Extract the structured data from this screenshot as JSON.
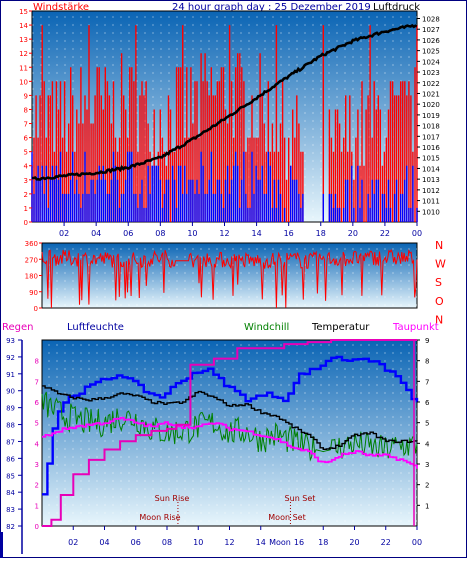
{
  "header": {
    "left_label": "Windstärke",
    "title": "24 hour graph day : 25 Dezember 2019",
    "right_label": "Luftdruck"
  },
  "direction_labels": [
    "N",
    "W",
    "S",
    "O",
    "N"
  ],
  "bottom_header": {
    "regen": "Regen",
    "luftfeuchte": "Luftfeuchte",
    "windchill": "Windchill",
    "temperatur": "Temperatur",
    "taupunkt": "Taupunkt"
  },
  "events": {
    "sun_rise": "Sun Rise",
    "sun_set": "Sun Set",
    "moon_rise": "Moon Rise",
    "moon_set": "Moon Set",
    "moon_tick": "Moon"
  },
  "colors": {
    "bg_gradient_top": "#0a64b4",
    "bg_gradient_bottom": "#e8f6fc",
    "wind_gust": "#ff0000",
    "wind_avg": "#0000ff",
    "pressure": "#000000",
    "direction": "#ff0000",
    "rain": "#e800b8",
    "humidity": "#0000ff",
    "windchill": "#008000",
    "temperature": "#000000",
    "dewpoint": "#ff00ff",
    "axis_left": "#ff0000",
    "axis_right": "#000000",
    "axis_blue": "#0000a0",
    "events": "#a00000"
  },
  "chart_data": [
    {
      "type": "bar",
      "panel": "wind_pressure",
      "x_ticks": [
        "02",
        "04",
        "06",
        "08",
        "10",
        "12",
        "14",
        "16",
        "18",
        "20",
        "22",
        "00"
      ],
      "y_left_ticks": [
        "0",
        "1",
        "2",
        "3",
        "4",
        "5",
        "6",
        "7",
        "8",
        "9",
        "10",
        "11",
        "12",
        "13",
        "14",
        "15"
      ],
      "y_right_ticks": [
        "1010",
        "1011",
        "1012",
        "1013",
        "1014",
        "1015",
        "1016",
        "1017",
        "1018",
        "1019",
        "1020",
        "1021",
        "1022",
        "1023",
        "1024",
        "1025",
        "1026",
        "1027",
        "1028"
      ],
      "ylim_left": [
        0,
        15
      ],
      "ylim_right": [
        1009,
        1028.7
      ],
      "series": [
        {
          "name": "Windstärke",
          "style": "gust",
          "x": [
            0,
            2,
            4,
            6,
            8,
            10,
            12,
            14,
            16,
            18,
            20,
            22,
            24
          ],
          "y": [
            7,
            7,
            8,
            8,
            7,
            8,
            9,
            8,
            6,
            4,
            6,
            7,
            7
          ]
        },
        {
          "style": "average",
          "x": [
            0,
            2,
            4,
            6,
            8,
            10,
            12,
            14,
            16,
            18,
            20,
            22,
            24
          ],
          "y": [
            3,
            3,
            3,
            3,
            2,
            3,
            3,
            3,
            2,
            1,
            2,
            2,
            2
          ]
        },
        {
          "name": "Luftdruck",
          "x": [
            0,
            2,
            4,
            6,
            8,
            10,
            12,
            14,
            16,
            18,
            20,
            22,
            24
          ],
          "y": [
            1013.0,
            1013.3,
            1013.6,
            1014.1,
            1015.0,
            1016.7,
            1018.6,
            1020.6,
            1022.6,
            1024.5,
            1025.9,
            1026.8,
            1027.4
          ]
        }
      ]
    },
    {
      "type": "line",
      "panel": "wind_direction",
      "y_ticks": [
        "0",
        "90",
        "180",
        "270",
        "360"
      ],
      "ylim": [
        0,
        360
      ],
      "series": [
        {
          "x": [
            0,
            2,
            4,
            6,
            8,
            8.5,
            9.4,
            10,
            12,
            14,
            16,
            17,
            18,
            20,
            22,
            24
          ],
          "y": [
            280,
            275,
            270,
            265,
            280,
            260,
            260,
            270,
            265,
            260,
            270,
            260,
            270,
            275,
            280,
            275
          ]
        }
      ]
    },
    {
      "type": "line",
      "panel": "temperature_humidity_rain",
      "y_left_ticks": [
        "82",
        "83",
        "84",
        "85",
        "86",
        "87",
        "88",
        "89",
        "90",
        "91",
        "92",
        "93"
      ],
      "y_left_inner_ticks": [
        "0",
        "1",
        "2",
        "3",
        "4",
        "5",
        "6",
        "7",
        "8"
      ],
      "y_right_ticks": [
        "1",
        "2",
        "3",
        "4",
        "5",
        "6",
        "7",
        "8",
        "9"
      ],
      "ylim_left": [
        82,
        93
      ],
      "ylim_temp": [
        0,
        9
      ],
      "series": [
        {
          "name": "Luftfeuchte",
          "x": [
            0,
            0.4,
            0.8,
            1.5,
            2.5,
            3.5,
            5,
            6.5,
            7.5,
            8,
            9.5,
            10.5,
            11.5,
            13,
            14.5,
            15.5,
            16.5,
            17.5,
            18.5,
            19.5,
            20.5,
            21.5,
            22.5,
            23.5,
            24
          ],
          "y": [
            84,
            86,
            88.5,
            89.5,
            90,
            90.5,
            91,
            90,
            89.6,
            90,
            91,
            91.3,
            90.5,
            89.5,
            89.8,
            89.5,
            91,
            91.3,
            92,
            91.8,
            92,
            91.5,
            91,
            89.8,
            89.2
          ]
        },
        {
          "name": "Windchill",
          "x": [
            0,
            1,
            2,
            3,
            4,
            5,
            6,
            7,
            8,
            9,
            10,
            11,
            12,
            13,
            14,
            15,
            16,
            17,
            18,
            19,
            20,
            21,
            22,
            23,
            24
          ],
          "y": [
            6.0,
            5.5,
            5.2,
            5.0,
            5.0,
            5.3,
            5.2,
            4.7,
            4.5,
            4.6,
            4.8,
            5.0,
            4.5,
            4.6,
            4.2,
            4.4,
            4.1,
            3.8,
            3.6,
            3.8,
            4.0,
            3.8,
            3.7,
            3.9,
            3.9
          ]
        },
        {
          "name": "Temperatur",
          "x": [
            0,
            1,
            2,
            3,
            4,
            5,
            6,
            7,
            8,
            9,
            10,
            11,
            12,
            13,
            14,
            15,
            16,
            17,
            18,
            19,
            20,
            21,
            22,
            23,
            24
          ],
          "y": [
            6.8,
            6.4,
            6.2,
            6.1,
            6.2,
            6.4,
            6.3,
            6.0,
            5.9,
            6.0,
            6.5,
            6.2,
            5.8,
            5.9,
            5.5,
            5.3,
            4.8,
            4.4,
            3.7,
            3.9,
            4.4,
            4.5,
            4.1,
            4.1,
            4.1
          ]
        },
        {
          "name": "Taupunkt",
          "x": [
            0,
            1,
            2,
            3,
            4,
            5,
            6,
            7,
            8,
            9,
            10,
            11,
            12,
            13,
            14,
            15,
            16,
            17,
            18,
            19,
            20,
            21,
            22,
            23,
            24
          ],
          "y": [
            4.3,
            4.6,
            4.8,
            4.9,
            5.0,
            5.2,
            5.0,
            4.8,
            5.0,
            4.8,
            4.8,
            5.0,
            4.7,
            4.6,
            4.4,
            4.2,
            3.8,
            3.6,
            3.0,
            3.4,
            3.6,
            3.4,
            3.4,
            3.2,
            2.8
          ]
        },
        {
          "name": "Regen",
          "x": [
            0,
            0.6,
            1.2,
            2,
            3,
            4,
            5,
            6,
            7,
            8,
            8.6,
            9.5,
            11,
            12.5,
            14.5,
            15.5,
            17,
            18.5,
            20,
            21,
            22,
            23,
            23.8,
            24
          ],
          "y": [
            0,
            0.3,
            1.5,
            2.5,
            3.2,
            3.7,
            4.1,
            4.4,
            4.6,
            4.7,
            4.9,
            7.8,
            8.1,
            8.6,
            8.6,
            8.8,
            8.9,
            9.0,
            9.0,
            9.0,
            9.0,
            9.0,
            9.0,
            9.0
          ]
        }
      ]
    }
  ]
}
